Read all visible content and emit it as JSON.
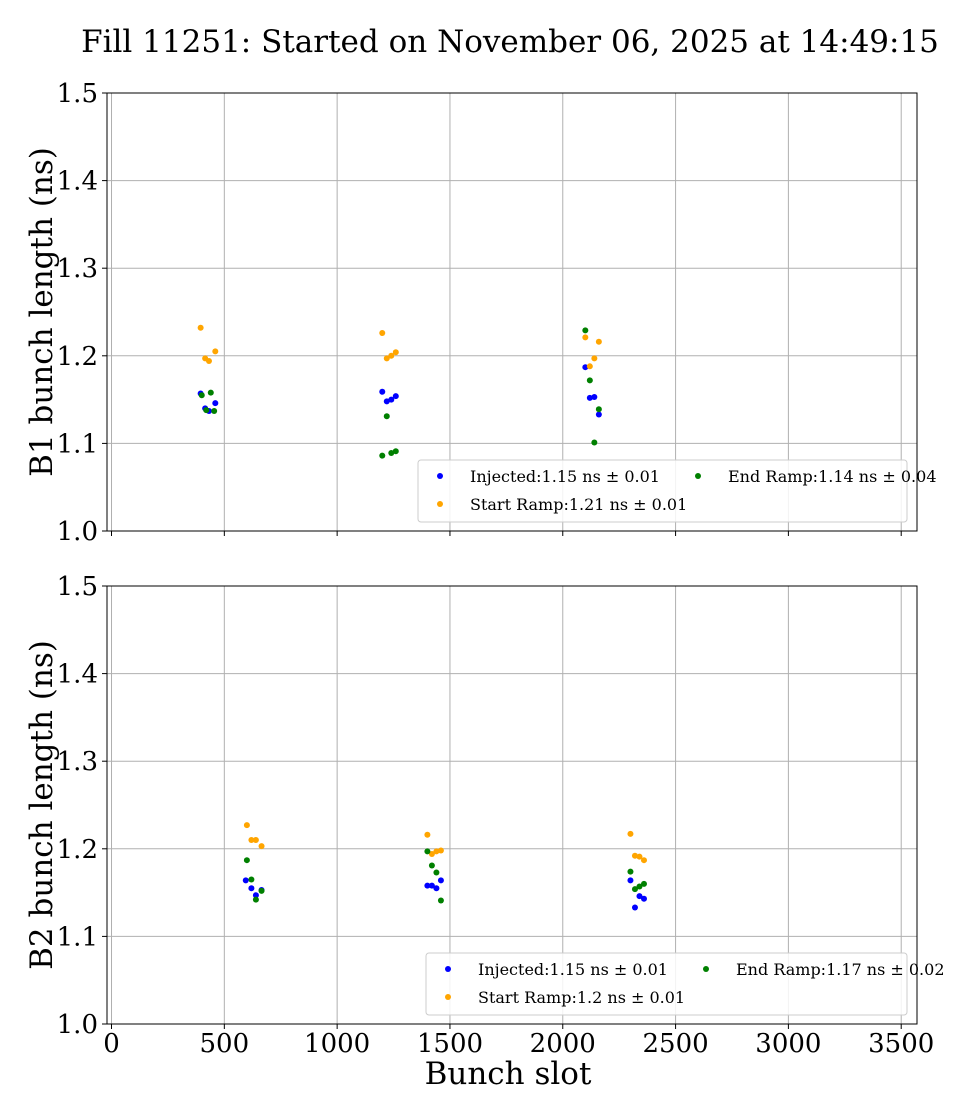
{
  "title": "Fill 11251: Started on November 06, 2025 at 14:49:15",
  "colors": {
    "injected": "#0000ff",
    "start_ramp": "#ffa500",
    "end_ramp": "#008000",
    "grid": "#b0b0b0"
  },
  "chart_data": [
    {
      "type": "scatter",
      "ylabel": "B1 bunch length (ns)",
      "xlabel": "",
      "xlim": [
        -20,
        3570
      ],
      "ylim": [
        1.0,
        1.5
      ],
      "xticks": [
        0,
        500,
        1000,
        1500,
        2000,
        2500,
        3000,
        3500
      ],
      "yticks": [
        1.0,
        1.1,
        1.2,
        1.3,
        1.4,
        1.5
      ],
      "yticklabels": [
        "1.0",
        "1.1",
        "1.2",
        "1.3",
        "1.4",
        "1.5"
      ],
      "show_xticklabels": false,
      "grid": true,
      "legend": "lower-right",
      "series": [
        {
          "name": "Injected:1.15 ns ± 0.01",
          "color_key": "injected",
          "x": [
            395,
            415,
            432,
            460,
            1200,
            1220,
            1240,
            1260,
            2100,
            2120,
            2140,
            2160
          ],
          "y": [
            1.157,
            1.14,
            1.137,
            1.146,
            1.159,
            1.148,
            1.15,
            1.154,
            1.187,
            1.152,
            1.153,
            1.133
          ]
        },
        {
          "name": "Start Ramp:1.21 ns ± 0.01",
          "color_key": "start_ramp",
          "x": [
            395,
            415,
            432,
            460,
            1200,
            1220,
            1240,
            1260,
            2100,
            2120,
            2140,
            2160
          ],
          "y": [
            1.232,
            1.197,
            1.194,
            1.205,
            1.226,
            1.197,
            1.2,
            1.204,
            1.221,
            1.188,
            1.197,
            1.216
          ]
        },
        {
          "name": "End Ramp:1.14 ns ± 0.04",
          "color_key": "end_ramp",
          "x": [
            400,
            420,
            440,
            455,
            1200,
            1220,
            1240,
            1260,
            2100,
            2120,
            2140,
            2160
          ],
          "y": [
            1.155,
            1.138,
            1.158,
            1.137,
            1.086,
            1.131,
            1.089,
            1.091,
            1.229,
            1.172,
            1.101,
            1.139
          ]
        }
      ]
    },
    {
      "type": "scatter",
      "ylabel": "B2 bunch length (ns)",
      "xlabel": "Bunch slot",
      "xlim": [
        -20,
        3570
      ],
      "ylim": [
        1.0,
        1.5
      ],
      "xticks": [
        0,
        500,
        1000,
        1500,
        2000,
        2500,
        3000,
        3500
      ],
      "yticks": [
        1.0,
        1.1,
        1.2,
        1.3,
        1.4,
        1.5
      ],
      "yticklabels": [
        "1.0",
        "1.1",
        "1.2",
        "1.3",
        "1.4",
        "1.5"
      ],
      "show_xticklabels": true,
      "grid": true,
      "legend": "lower-right",
      "series": [
        {
          "name": "Injected:1.15 ns ± 0.01",
          "color_key": "injected",
          "x": [
            595,
            620,
            640,
            665,
            1400,
            1420,
            1440,
            1460,
            2300,
            2320,
            2340,
            2360
          ],
          "y": [
            1.164,
            1.155,
            1.147,
            1.153,
            1.158,
            1.158,
            1.155,
            1.164,
            1.164,
            1.133,
            1.146,
            1.143
          ]
        },
        {
          "name": "Start Ramp:1.2 ns ± 0.01",
          "color_key": "start_ramp",
          "x": [
            600,
            620,
            640,
            665,
            1400,
            1420,
            1440,
            1460,
            2300,
            2320,
            2340,
            2360
          ],
          "y": [
            1.227,
            1.21,
            1.21,
            1.203,
            1.216,
            1.194,
            1.197,
            1.198,
            1.217,
            1.192,
            1.191,
            1.187
          ]
        },
        {
          "name": "End Ramp:1.17 ns ± 0.02",
          "color_key": "end_ramp",
          "x": [
            600,
            620,
            640,
            665,
            1400,
            1420,
            1440,
            1460,
            2300,
            2320,
            2340,
            2360
          ],
          "y": [
            1.187,
            1.165,
            1.142,
            1.152,
            1.197,
            1.181,
            1.173,
            1.141,
            1.174,
            1.154,
            1.157,
            1.16
          ]
        }
      ]
    }
  ]
}
